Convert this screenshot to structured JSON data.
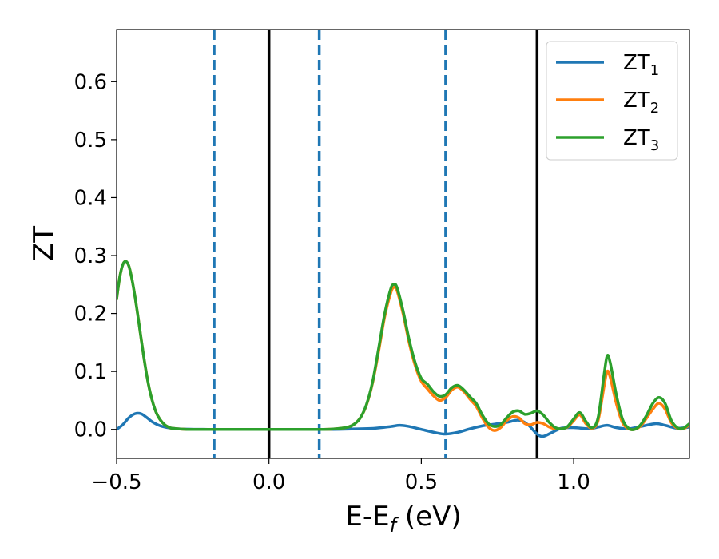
{
  "chart_data": {
    "type": "line",
    "xlabel": "E-E",
    "xlabel_sub": "f",
    "xlabel_unit": " (eV)",
    "ylabel": "ZT",
    "xlim": [
      -0.5,
      1.38
    ],
    "ylim": [
      -0.05,
      0.69
    ],
    "xticks": [
      -0.5,
      0.0,
      0.5,
      1.0
    ],
    "xtick_labels": [
      "−0.5",
      "0.0",
      "0.5",
      "1.0"
    ],
    "yticks": [
      0.0,
      0.1,
      0.2,
      0.3,
      0.4,
      0.5,
      0.6
    ],
    "ytick_labels": [
      "0.0",
      "0.1",
      "0.2",
      "0.3",
      "0.4",
      "0.5",
      "0.6"
    ],
    "grid": false,
    "legend_position": "top-right",
    "vlines_solid": [
      0.0,
      0.88
    ],
    "vlines_dashed": [
      -0.18,
      0.165,
      0.58
    ],
    "colors": {
      "ZT1": "#1f77b4",
      "ZT2": "#ff7f0e",
      "ZT3": "#2ca02c",
      "solid": "#000000",
      "dashed": "#1f77b4"
    },
    "series": [
      {
        "name": "ZT",
        "name_sub": "1",
        "color": "#1f77b4",
        "x": [
          -0.5,
          -0.48,
          -0.46,
          -0.44,
          -0.42,
          -0.4,
          -0.38,
          -0.35,
          -0.3,
          -0.2,
          -0.1,
          0.0,
          0.1,
          0.2,
          0.3,
          0.35,
          0.4,
          0.43,
          0.46,
          0.5,
          0.55,
          0.58,
          0.62,
          0.66,
          0.7,
          0.74,
          0.78,
          0.82,
          0.85,
          0.88,
          0.9,
          0.93,
          0.96,
          1.0,
          1.05,
          1.08,
          1.11,
          1.14,
          1.18,
          1.22,
          1.27,
          1.3,
          1.34,
          1.38
        ],
        "y": [
          0.0,
          0.008,
          0.02,
          0.027,
          0.027,
          0.02,
          0.012,
          0.005,
          0.001,
          0.0,
          0.0,
          0.0,
          0.0,
          0.0,
          0.001,
          0.002,
          0.005,
          0.007,
          0.005,
          0.0,
          -0.006,
          -0.008,
          -0.005,
          0.001,
          0.006,
          0.009,
          0.012,
          0.016,
          0.008,
          -0.008,
          -0.012,
          -0.005,
          0.002,
          0.003,
          0.001,
          0.004,
          0.007,
          0.003,
          0.001,
          0.005,
          0.01,
          0.007,
          0.002,
          0.004
        ]
      },
      {
        "name": "ZT",
        "name_sub": "2",
        "color": "#ff7f0e",
        "x": [
          -0.5,
          -0.49,
          -0.48,
          -0.47,
          -0.46,
          -0.45,
          -0.44,
          -0.43,
          -0.42,
          -0.41,
          -0.4,
          -0.39,
          -0.38,
          -0.37,
          -0.36,
          -0.35,
          -0.34,
          -0.33,
          -0.32,
          -0.3,
          -0.27,
          -0.24,
          -0.2,
          -0.1,
          0.0,
          0.1,
          0.18,
          0.22,
          0.26,
          0.28,
          0.3,
          0.32,
          0.34,
          0.36,
          0.38,
          0.4,
          0.41,
          0.42,
          0.44,
          0.46,
          0.48,
          0.5,
          0.52,
          0.54,
          0.56,
          0.58,
          0.6,
          0.62,
          0.64,
          0.66,
          0.68,
          0.7,
          0.72,
          0.74,
          0.76,
          0.78,
          0.8,
          0.82,
          0.84,
          0.86,
          0.88,
          0.9,
          0.92,
          0.94,
          0.96,
          0.98,
          1.0,
          1.02,
          1.04,
          1.06,
          1.08,
          1.1,
          1.11,
          1.12,
          1.14,
          1.16,
          1.18,
          1.2,
          1.22,
          1.24,
          1.26,
          1.28,
          1.3,
          1.32,
          1.34,
          1.36,
          1.38
        ],
        "y": [
          0.225,
          0.262,
          0.284,
          0.29,
          0.282,
          0.26,
          0.23,
          0.195,
          0.158,
          0.122,
          0.09,
          0.064,
          0.044,
          0.029,
          0.019,
          0.012,
          0.007,
          0.004,
          0.002,
          0.001,
          0.0,
          0.0,
          0.0,
          0.0,
          0.0,
          0.0,
          0.0,
          0.001,
          0.004,
          0.009,
          0.02,
          0.042,
          0.08,
          0.135,
          0.195,
          0.236,
          0.245,
          0.24,
          0.2,
          0.15,
          0.11,
          0.083,
          0.07,
          0.058,
          0.05,
          0.055,
          0.068,
          0.073,
          0.065,
          0.052,
          0.04,
          0.02,
          0.004,
          -0.002,
          0.003,
          0.015,
          0.022,
          0.02,
          0.01,
          0.008,
          0.012,
          0.01,
          0.004,
          0.001,
          0.001,
          0.004,
          0.015,
          0.025,
          0.01,
          0.002,
          0.015,
          0.075,
          0.1,
          0.09,
          0.045,
          0.012,
          0.001,
          0.0,
          0.006,
          0.02,
          0.035,
          0.045,
          0.035,
          0.012,
          0.002,
          0.001,
          0.008
        ]
      },
      {
        "name": "ZT",
        "name_sub": "3",
        "color": "#2ca02c",
        "x": [
          -0.5,
          -0.49,
          -0.48,
          -0.47,
          -0.46,
          -0.45,
          -0.44,
          -0.43,
          -0.42,
          -0.41,
          -0.4,
          -0.39,
          -0.38,
          -0.37,
          -0.36,
          -0.35,
          -0.34,
          -0.33,
          -0.32,
          -0.3,
          -0.27,
          -0.24,
          -0.2,
          -0.1,
          0.0,
          0.1,
          0.18,
          0.22,
          0.26,
          0.28,
          0.3,
          0.32,
          0.34,
          0.36,
          0.38,
          0.4,
          0.41,
          0.42,
          0.44,
          0.46,
          0.48,
          0.5,
          0.52,
          0.54,
          0.56,
          0.58,
          0.6,
          0.62,
          0.64,
          0.66,
          0.68,
          0.7,
          0.72,
          0.74,
          0.76,
          0.78,
          0.8,
          0.82,
          0.84,
          0.86,
          0.88,
          0.9,
          0.92,
          0.94,
          0.96,
          0.98,
          1.0,
          1.02,
          1.04,
          1.06,
          1.08,
          1.1,
          1.11,
          1.12,
          1.14,
          1.16,
          1.18,
          1.2,
          1.22,
          1.24,
          1.26,
          1.28,
          1.3,
          1.32,
          1.34,
          1.36,
          1.38
        ],
        "y": [
          0.225,
          0.262,
          0.284,
          0.29,
          0.282,
          0.26,
          0.23,
          0.195,
          0.158,
          0.122,
          0.09,
          0.064,
          0.044,
          0.029,
          0.019,
          0.012,
          0.007,
          0.004,
          0.002,
          0.001,
          0.0,
          0.0,
          0.0,
          0.0,
          0.0,
          0.0,
          0.0,
          0.001,
          0.004,
          0.009,
          0.02,
          0.043,
          0.082,
          0.14,
          0.2,
          0.243,
          0.25,
          0.245,
          0.205,
          0.155,
          0.115,
          0.088,
          0.078,
          0.065,
          0.057,
          0.06,
          0.072,
          0.076,
          0.068,
          0.056,
          0.045,
          0.025,
          0.01,
          0.005,
          0.008,
          0.02,
          0.03,
          0.032,
          0.026,
          0.028,
          0.032,
          0.025,
          0.012,
          0.003,
          0.001,
          0.005,
          0.018,
          0.029,
          0.014,
          0.003,
          0.02,
          0.095,
          0.127,
          0.115,
          0.06,
          0.018,
          0.002,
          0.0,
          0.008,
          0.025,
          0.045,
          0.055,
          0.045,
          0.016,
          0.003,
          0.002,
          0.01
        ]
      }
    ]
  }
}
